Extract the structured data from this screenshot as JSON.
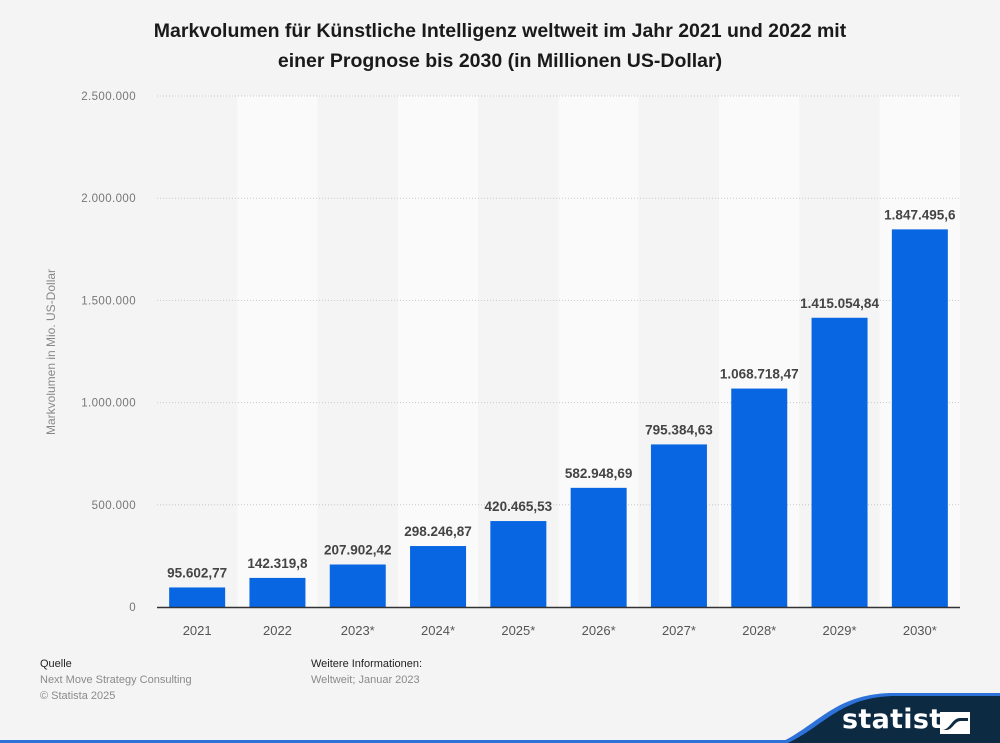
{
  "header": {
    "title_line1": "Markvolumen für Künstliche Intelligenz weltweit im Jahr 2021 und 2022 mit",
    "title_line2": "einer Prognose bis 2030 (in Millionen US-Dollar)"
  },
  "chart_data": {
    "type": "bar",
    "title": "Markvolumen für Künstliche Intelligenz weltweit im Jahr 2021 und 2022 mit einer Prognose bis 2030 (in Millionen US-Dollar)",
    "xlabel": "",
    "ylabel": "Markvolumen in Mio. US-Dollar",
    "categories": [
      "2021",
      "2022",
      "2023*",
      "2024*",
      "2025*",
      "2026*",
      "2027*",
      "2028*",
      "2029*",
      "2030*"
    ],
    "values": [
      95602.77,
      142319.8,
      207902.42,
      298246.87,
      420465.53,
      582948.69,
      795384.63,
      1068718.47,
      1415054.84,
      1847495.6
    ],
    "value_labels": [
      "95.602,77",
      "142.319,8",
      "207.902,42",
      "298.246,87",
      "420.465,53",
      "582.948,69",
      "795.384,63",
      "1.068.718,47",
      "1.415.054,84",
      "1.847.495,6"
    ],
    "ylim": [
      0,
      2500000
    ],
    "yticks": [
      0,
      500000,
      1000000,
      1500000,
      2000000,
      2500000
    ],
    "ytick_labels": [
      "0",
      "500.000",
      "1.000.000",
      "1.500.000",
      "2.000.000",
      "2.500.000"
    ],
    "grid": true,
    "legend": "none",
    "colors": {
      "bar": "#0866e3",
      "band_light": "#fafafa",
      "band_dark": "#f4f4f4",
      "axis": "#333333"
    }
  },
  "footer": {
    "source_heading": "Quelle",
    "source_text": "Next Move Strategy Consulting",
    "copyright": "© Statista 2025",
    "info_heading": "Weitere Informationen:",
    "info_text": "Weltweit; Januar 2023"
  },
  "brand": {
    "logo_text": "statista",
    "logo_icon": "statista-logo-icon",
    "dark_color": "#0c2a42",
    "accent_color": "#2d72d9"
  }
}
